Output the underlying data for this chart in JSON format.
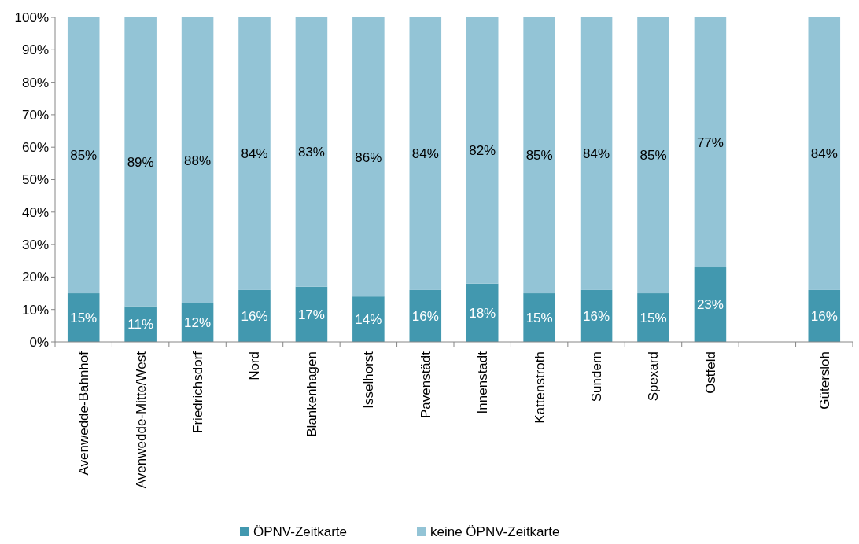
{
  "chart_data": {
    "type": "bar",
    "stacked": true,
    "legend": "bottom",
    "categories": [
      "Avenwedde-Bahnhof",
      "Avenwedde-Mitte/West",
      "Friedrichsdorf",
      "Nord",
      "Blankenhagen",
      "Isselhorst",
      "Pavenstädt",
      "Innenstadt",
      "Kattenstroth",
      "Sundern",
      "Spexard",
      "Ostfeld",
      null,
      "Gütersloh"
    ],
    "series": [
      {
        "name": "ÖPNV-Zeitkarte",
        "color": "#4298af",
        "values": [
          15,
          11,
          12,
          16,
          17,
          14,
          16,
          18,
          15,
          16,
          15,
          23,
          null,
          16
        ],
        "value_labels": [
          "15%",
          "11%",
          "12%",
          "16%",
          "17%",
          "14%",
          "16%",
          "18%",
          "15%",
          "16%",
          "15%",
          "23%",
          null,
          "16%"
        ]
      },
      {
        "name": "keine ÖPNV-Zeitkarte",
        "color": "#93c4d6",
        "values": [
          85,
          89,
          88,
          84,
          83,
          86,
          84,
          82,
          85,
          84,
          85,
          77,
          null,
          84
        ],
        "value_labels": [
          "85%",
          "89%",
          "88%",
          "84%",
          "83%",
          "86%",
          "84%",
          "82%",
          "85%",
          "84%",
          "85%",
          "77%",
          null,
          "84%"
        ]
      }
    ],
    "ylim": [
      0,
      100
    ],
    "yticks": [
      {
        "value": 0,
        "label": "0%"
      },
      {
        "value": 10,
        "label": "10%"
      },
      {
        "value": 20,
        "label": "20%"
      },
      {
        "value": 30,
        "label": "30%"
      },
      {
        "value": 40,
        "label": "40%"
      },
      {
        "value": 50,
        "label": "50%"
      },
      {
        "value": 60,
        "label": "60%"
      },
      {
        "value": 70,
        "label": "70%"
      },
      {
        "value": 80,
        "label": "80%"
      },
      {
        "value": 90,
        "label": "90%"
      },
      {
        "value": 100,
        "label": "100%"
      }
    ]
  }
}
